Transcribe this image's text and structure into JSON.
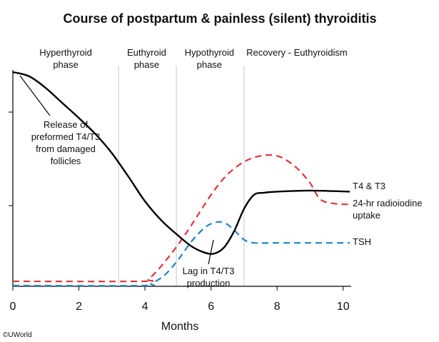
{
  "chart_data": {
    "type": "line",
    "title": "Course of postpartum & painless (silent) thyroiditis",
    "xlabel": "Months",
    "ylabel": "",
    "xlim": [
      0,
      10.2
    ],
    "ylim": [
      0,
      10
    ],
    "x_ticks": [
      "0",
      "2",
      "4",
      "6",
      "8",
      "10"
    ],
    "grid": false,
    "phase_boundaries": [
      3.2,
      4.95,
      7.0
    ],
    "phases": [
      {
        "label_line1": "Hyperthyroid",
        "label_line2": "phase",
        "x_center": 1.6
      },
      {
        "label_line1": "Euthyroid",
        "label_line2": "phase",
        "x_center": 4.05
      },
      {
        "label_line1": "Hypothyroid",
        "label_line2": "phase",
        "x_center": 5.95
      },
      {
        "label_line1": "Recovery - Euthyroidism",
        "label_line2": "",
        "x_center": 8.6
      }
    ],
    "series": [
      {
        "name": "T4 & T3",
        "color": "#000000",
        "dashed": false,
        "x": [
          0,
          0.5,
          1.0,
          1.5,
          2.0,
          2.5,
          3.0,
          3.5,
          4.0,
          4.5,
          5.0,
          5.4,
          5.8,
          6.1,
          6.4,
          6.7,
          7.0,
          7.3,
          7.6,
          8.0,
          9.0,
          10.2
        ],
        "y": [
          10.0,
          9.8,
          9.25,
          8.55,
          7.85,
          7.1,
          6.2,
          5.1,
          3.95,
          3.05,
          2.35,
          1.85,
          1.55,
          1.5,
          1.8,
          2.55,
          3.6,
          4.25,
          4.35,
          4.4,
          4.45,
          4.4
        ]
      },
      {
        "name": "24-hr radioiodine uptake",
        "color": "#e0333c",
        "dashed": true,
        "x": [
          0,
          3.9,
          4.1,
          4.4,
          4.8,
          5.2,
          5.6,
          6.0,
          6.4,
          6.8,
          7.2,
          7.6,
          7.9,
          8.2,
          8.6,
          9.0,
          9.3,
          9.7,
          10.2
        ],
        "y": [
          0.2,
          0.2,
          0.3,
          0.75,
          1.5,
          2.35,
          3.3,
          4.25,
          5.05,
          5.6,
          5.95,
          6.1,
          6.1,
          5.95,
          5.5,
          4.8,
          4.05,
          3.85,
          3.8
        ]
      },
      {
        "name": "TSH",
        "color": "#1b86c4",
        "dashed": true,
        "x": [
          0,
          3.9,
          4.2,
          4.6,
          5.0,
          5.4,
          5.8,
          6.1,
          6.4,
          6.7,
          7.0,
          7.3,
          8.0,
          9.0,
          10.2
        ],
        "y": [
          0.0,
          0.0,
          0.1,
          0.5,
          1.2,
          2.05,
          2.7,
          2.95,
          2.95,
          2.6,
          2.15,
          2.0,
          2.0,
          2.0,
          2.0
        ]
      }
    ],
    "annotations": [
      {
        "lines": [
          "Release of",
          "preformed T4/T3",
          "from damaged",
          "follicles"
        ]
      },
      {
        "lines": [
          "Lag in T4/T3",
          "production"
        ]
      }
    ]
  },
  "credit": "©UWorld"
}
